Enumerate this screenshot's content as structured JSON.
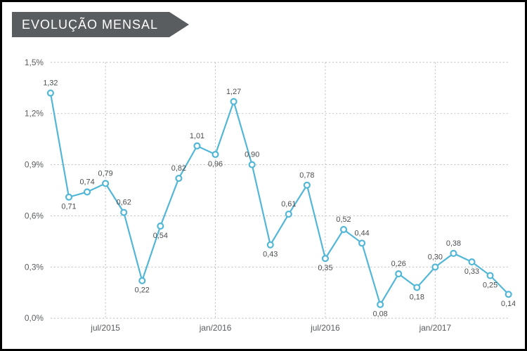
{
  "banner": {
    "title": "EVOLUÇÃO MENSAL",
    "bg_color": "#5a5d60",
    "title_fontsize": 18
  },
  "chart": {
    "type": "line",
    "background_color": "#ffffff",
    "grid_color": "#b9bbbe",
    "series_color": "#52b6d6",
    "marker_fill": "#ffffff",
    "marker_radius": 4,
    "line_width": 2.2,
    "text_axis_color": "#5a5d60",
    "text_data_color": "#4a4d50",
    "label_fontsize": 11,
    "axis_fontsize": 12,
    "ylim": [
      0.0,
      1.5
    ],
    "ytick_step": 0.3,
    "ytick_labels": [
      "0,0%",
      "0,3%",
      "0,6%",
      "0,9%",
      "1,2%",
      "1,5%"
    ],
    "x_vgrid_positions": [
      3,
      9,
      15,
      21
    ],
    "x_vgrid_labels": [
      "jul/2015",
      "jan/2016",
      "jul/2016",
      "jan/2017"
    ],
    "values": [
      1.32,
      0.71,
      0.74,
      0.79,
      0.62,
      0.22,
      0.54,
      0.82,
      1.01,
      0.96,
      1.27,
      0.9,
      0.43,
      0.61,
      0.78,
      0.35,
      0.52,
      0.44,
      0.08,
      0.26,
      0.18,
      0.3,
      0.38,
      0.33,
      0.25,
      0.14
    ],
    "data_labels": [
      "1,32",
      "0,71",
      "0,74",
      "0,79",
      "0,62",
      "0,22",
      "0,54",
      "0,82",
      "1,01",
      "0,96",
      "1,27",
      "0,90",
      "0,43",
      "0,61",
      "0,78",
      "0,35",
      "0,52",
      "0,44",
      "0,08",
      "0,26",
      "0,18",
      "0,30",
      "0,38",
      "0,33",
      "0,25",
      "0,14"
    ],
    "label_offsets_y": [
      -11,
      13,
      -11,
      -11,
      -11,
      13,
      13,
      -11,
      -11,
      13,
      -11,
      -11,
      13,
      -11,
      -11,
      13,
      -11,
      -11,
      13,
      -11,
      13,
      -11,
      -11,
      13,
      13,
      13
    ]
  }
}
